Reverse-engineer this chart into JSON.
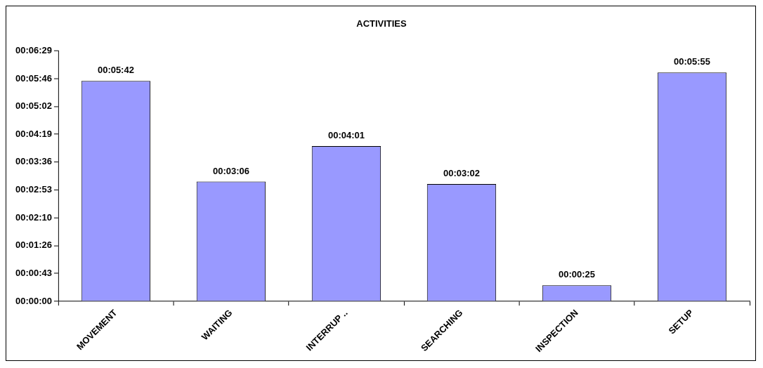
{
  "chart_data": {
    "type": "bar",
    "title": "ACTIVITIES",
    "categories": [
      "MOVEMENT",
      "WAITING",
      "INTERRUP ..",
      "SEARCHING",
      "INSPECTION",
      "SETUP"
    ],
    "values": [
      342,
      186,
      241,
      182,
      25,
      355
    ],
    "value_labels": [
      "00:05:42",
      "00:03:06",
      "00:04:01",
      "00:03:02",
      "00:00:25",
      "00:05:55"
    ],
    "color": "#9999ff",
    "ylim": [
      0,
      388.8
    ],
    "yticks": [
      {
        "value": 0,
        "label": "00:00:00"
      },
      {
        "value": 43.2,
        "label": "00:00:43"
      },
      {
        "value": 86.4,
        "label": "00:01:26"
      },
      {
        "value": 129.6,
        "label": "00:02:10"
      },
      {
        "value": 172.8,
        "label": "00:02:53"
      },
      {
        "value": 216,
        "label": "00:03:36"
      },
      {
        "value": 259.2,
        "label": "00:04:19"
      },
      {
        "value": 302.4,
        "label": "00:05:02"
      },
      {
        "value": 345.6,
        "label": "00:05:46"
      },
      {
        "value": 388.8,
        "label": "00:06:29"
      }
    ],
    "grid": false,
    "legend": false
  }
}
